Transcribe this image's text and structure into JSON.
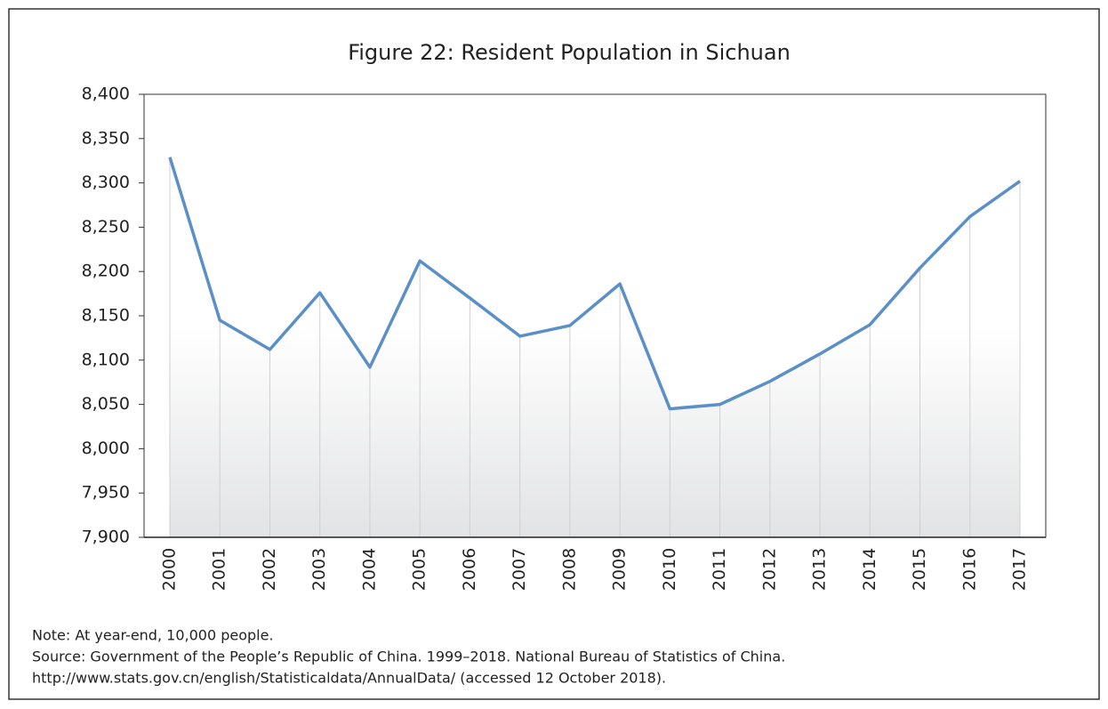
{
  "chart_data": {
    "type": "line",
    "title": "Figure 22: Resident Population in Sichuan",
    "categories": [
      "2000",
      "2001",
      "2002",
      "2003",
      "2004",
      "2005",
      "2006",
      "2007",
      "2008",
      "2009",
      "2010",
      "2011",
      "2012",
      "2013",
      "2014",
      "2015",
      "2016",
      "2017"
    ],
    "series": [
      {
        "name": "Resident Population",
        "color": "#5b8fc7",
        "values": [
          8329,
          8145,
          8112,
          8176,
          8092,
          8212,
          8170,
          8127,
          8139,
          8186,
          8045,
          8050,
          8076,
          8107,
          8140,
          8204,
          8262,
          8302
        ]
      }
    ],
    "ylim": [
      7900,
      8400
    ],
    "yticks": [
      {
        "value": 7900,
        "label": "7,900"
      },
      {
        "value": 7950,
        "label": "7,950"
      },
      {
        "value": 8000,
        "label": "8,000"
      },
      {
        "value": 8050,
        "label": "8,050"
      },
      {
        "value": 8100,
        "label": "8,100"
      },
      {
        "value": 8150,
        "label": "8,150"
      },
      {
        "value": 8200,
        "label": "8,200"
      },
      {
        "value": 8250,
        "label": "8,250"
      },
      {
        "value": 8300,
        "label": "8,300"
      },
      {
        "value": 8350,
        "label": "8,350"
      },
      {
        "value": 8400,
        "label": "8,400"
      }
    ],
    "notes": [
      "Note: At year-end, 10,000 people.",
      "Source: Government of the People’s Republic of China. 1999–2018. National Bureau of Statistics of China.",
      "http://www.stats.gov.cn/english/Statisticaldata/AnnualData/ (accessed 12 October 2018)."
    ]
  }
}
